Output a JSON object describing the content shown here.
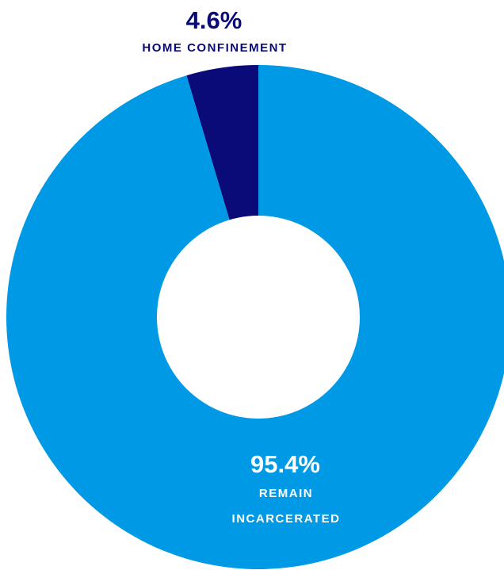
{
  "chart_data": {
    "type": "pie",
    "style": "donut",
    "title": "",
    "slices": [
      {
        "pct_label": "4.6%",
        "label_lines": [
          "HOME CONFINEMENT"
        ],
        "value": 4.6,
        "color": "#0a0a78",
        "label_color": "#0a0a78",
        "label_position": "outside-top"
      },
      {
        "pct_label": "95.4%",
        "label_lines": [
          "REMAIN",
          "INCARCERATED"
        ],
        "value": 95.4,
        "color": "#0099e5",
        "label_color": "#ffffff",
        "label_position": "inside-bottom"
      }
    ],
    "background_color": "#ffffff"
  }
}
